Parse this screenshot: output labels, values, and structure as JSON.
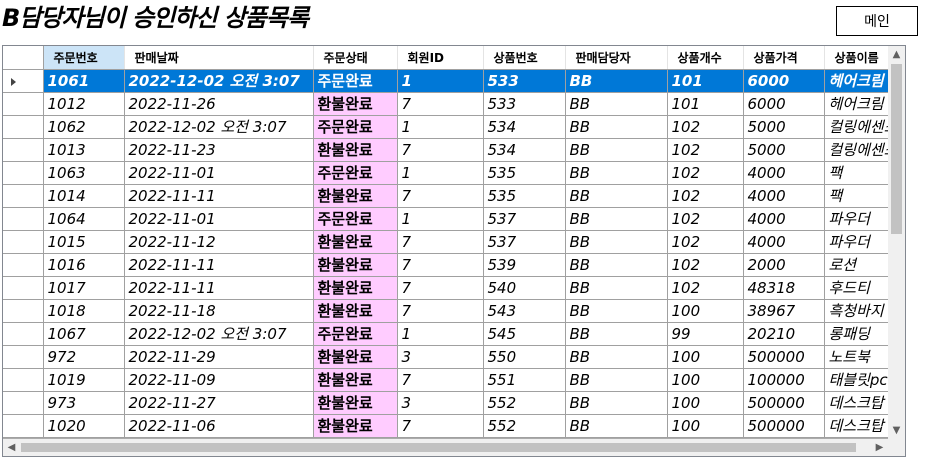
{
  "title": "B담당자님이 승인하신 상품목록",
  "main_button_label": "메인",
  "columns": [
    "주문번호",
    "판매날짜",
    "주문상태",
    "회원ID",
    "상품번호",
    "판매담당자",
    "상품개수",
    "상품가격",
    "상품이름"
  ],
  "rows": [
    [
      "1061",
      "2022-12-02 오전 3:07",
      "주문완료",
      "1",
      "533",
      "BB",
      "101",
      "6000",
      "헤어크림"
    ],
    [
      "1012",
      "2022-11-26",
      "환불완료",
      "7",
      "533",
      "BB",
      "101",
      "6000",
      "헤어크림"
    ],
    [
      "1062",
      "2022-12-02 오전 3:07",
      "주문완료",
      "1",
      "534",
      "BB",
      "102",
      "5000",
      "컬링에센스"
    ],
    [
      "1013",
      "2022-11-23",
      "환불완료",
      "7",
      "534",
      "BB",
      "102",
      "5000",
      "컬링에센스"
    ],
    [
      "1063",
      "2022-11-01",
      "주문완료",
      "1",
      "535",
      "BB",
      "102",
      "4000",
      "팩"
    ],
    [
      "1014",
      "2022-11-11",
      "환불완료",
      "7",
      "535",
      "BB",
      "102",
      "4000",
      "팩"
    ],
    [
      "1064",
      "2022-11-01",
      "주문완료",
      "1",
      "537",
      "BB",
      "102",
      "4000",
      "파우더"
    ],
    [
      "1015",
      "2022-11-12",
      "환불완료",
      "7",
      "537",
      "BB",
      "102",
      "4000",
      "파우더"
    ],
    [
      "1016",
      "2022-11-11",
      "환불완료",
      "7",
      "539",
      "BB",
      "102",
      "2000",
      "로션"
    ],
    [
      "1017",
      "2022-11-11",
      "환불완료",
      "7",
      "540",
      "BB",
      "102",
      "48318",
      "후드티"
    ],
    [
      "1018",
      "2022-11-18",
      "환불완료",
      "7",
      "543",
      "BB",
      "100",
      "38967",
      "흑청바지"
    ],
    [
      "1067",
      "2022-12-02 오전 3:07",
      "주문완료",
      "1",
      "545",
      "BB",
      "99",
      "20210",
      "롱패딩"
    ],
    [
      "972",
      "2022-11-29",
      "환불완료",
      "3",
      "550",
      "BB",
      "100",
      "500000",
      "노트북"
    ],
    [
      "1019",
      "2022-11-09",
      "환불완료",
      "7",
      "551",
      "BB",
      "100",
      "100000",
      "태블릿pc"
    ],
    [
      "973",
      "2022-11-27",
      "환불완료",
      "3",
      "552",
      "BB",
      "100",
      "500000",
      "데스크탑"
    ],
    [
      "1020",
      "2022-11-06",
      "환불완료",
      "7",
      "552",
      "BB",
      "100",
      "500000",
      "데스크탑"
    ]
  ],
  "selected_row_index": 0,
  "icons": {
    "row_indicator": "row-arrow-icon",
    "scroll_up": "chevron-up-icon",
    "scroll_down": "chevron-down-icon",
    "scroll_left": "chevron-left-icon",
    "scroll_right": "chevron-right-icon"
  },
  "colors": {
    "selected_row": "#0078d7",
    "status_cell": "#ffccff",
    "header_selected": "#cce4f7"
  }
}
